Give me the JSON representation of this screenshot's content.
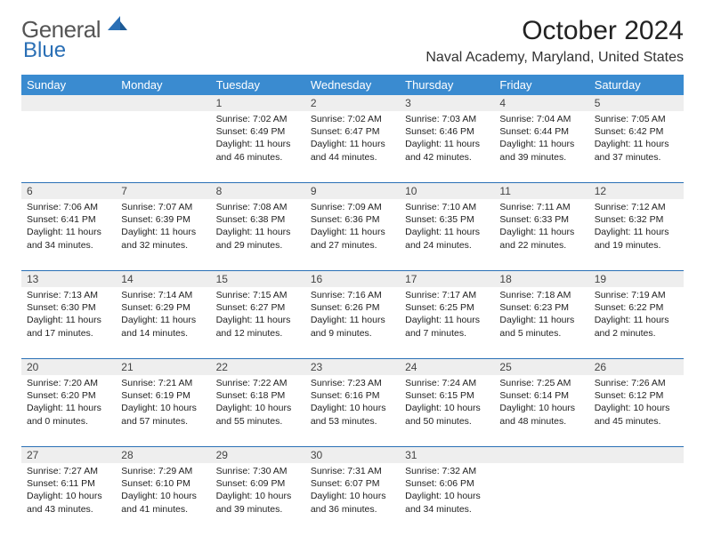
{
  "brand": {
    "name1": "General",
    "name2": "Blue"
  },
  "title": {
    "month": "October 2024",
    "location": "Naval Academy, Maryland, United States"
  },
  "dow": [
    "Sunday",
    "Monday",
    "Tuesday",
    "Wednesday",
    "Thursday",
    "Friday",
    "Saturday"
  ],
  "colors": {
    "accent": "#3a8bd0",
    "divider": "#2a6fb5",
    "headbg": "#eeeeee"
  },
  "weeks": [
    [
      null,
      null,
      {
        "n": "1",
        "sr": "7:02 AM",
        "ss": "6:49 PM",
        "dl": "11 hours and 46 minutes."
      },
      {
        "n": "2",
        "sr": "7:02 AM",
        "ss": "6:47 PM",
        "dl": "11 hours and 44 minutes."
      },
      {
        "n": "3",
        "sr": "7:03 AM",
        "ss": "6:46 PM",
        "dl": "11 hours and 42 minutes."
      },
      {
        "n": "4",
        "sr": "7:04 AM",
        "ss": "6:44 PM",
        "dl": "11 hours and 39 minutes."
      },
      {
        "n": "5",
        "sr": "7:05 AM",
        "ss": "6:42 PM",
        "dl": "11 hours and 37 minutes."
      }
    ],
    [
      {
        "n": "6",
        "sr": "7:06 AM",
        "ss": "6:41 PM",
        "dl": "11 hours and 34 minutes."
      },
      {
        "n": "7",
        "sr": "7:07 AM",
        "ss": "6:39 PM",
        "dl": "11 hours and 32 minutes."
      },
      {
        "n": "8",
        "sr": "7:08 AM",
        "ss": "6:38 PM",
        "dl": "11 hours and 29 minutes."
      },
      {
        "n": "9",
        "sr": "7:09 AM",
        "ss": "6:36 PM",
        "dl": "11 hours and 27 minutes."
      },
      {
        "n": "10",
        "sr": "7:10 AM",
        "ss": "6:35 PM",
        "dl": "11 hours and 24 minutes."
      },
      {
        "n": "11",
        "sr": "7:11 AM",
        "ss": "6:33 PM",
        "dl": "11 hours and 22 minutes."
      },
      {
        "n": "12",
        "sr": "7:12 AM",
        "ss": "6:32 PM",
        "dl": "11 hours and 19 minutes."
      }
    ],
    [
      {
        "n": "13",
        "sr": "7:13 AM",
        "ss": "6:30 PM",
        "dl": "11 hours and 17 minutes."
      },
      {
        "n": "14",
        "sr": "7:14 AM",
        "ss": "6:29 PM",
        "dl": "11 hours and 14 minutes."
      },
      {
        "n": "15",
        "sr": "7:15 AM",
        "ss": "6:27 PM",
        "dl": "11 hours and 12 minutes."
      },
      {
        "n": "16",
        "sr": "7:16 AM",
        "ss": "6:26 PM",
        "dl": "11 hours and 9 minutes."
      },
      {
        "n": "17",
        "sr": "7:17 AM",
        "ss": "6:25 PM",
        "dl": "11 hours and 7 minutes."
      },
      {
        "n": "18",
        "sr": "7:18 AM",
        "ss": "6:23 PM",
        "dl": "11 hours and 5 minutes."
      },
      {
        "n": "19",
        "sr": "7:19 AM",
        "ss": "6:22 PM",
        "dl": "11 hours and 2 minutes."
      }
    ],
    [
      {
        "n": "20",
        "sr": "7:20 AM",
        "ss": "6:20 PM",
        "dl": "11 hours and 0 minutes."
      },
      {
        "n": "21",
        "sr": "7:21 AM",
        "ss": "6:19 PM",
        "dl": "10 hours and 57 minutes."
      },
      {
        "n": "22",
        "sr": "7:22 AM",
        "ss": "6:18 PM",
        "dl": "10 hours and 55 minutes."
      },
      {
        "n": "23",
        "sr": "7:23 AM",
        "ss": "6:16 PM",
        "dl": "10 hours and 53 minutes."
      },
      {
        "n": "24",
        "sr": "7:24 AM",
        "ss": "6:15 PM",
        "dl": "10 hours and 50 minutes."
      },
      {
        "n": "25",
        "sr": "7:25 AM",
        "ss": "6:14 PM",
        "dl": "10 hours and 48 minutes."
      },
      {
        "n": "26",
        "sr": "7:26 AM",
        "ss": "6:12 PM",
        "dl": "10 hours and 45 minutes."
      }
    ],
    [
      {
        "n": "27",
        "sr": "7:27 AM",
        "ss": "6:11 PM",
        "dl": "10 hours and 43 minutes."
      },
      {
        "n": "28",
        "sr": "7:29 AM",
        "ss": "6:10 PM",
        "dl": "10 hours and 41 minutes."
      },
      {
        "n": "29",
        "sr": "7:30 AM",
        "ss": "6:09 PM",
        "dl": "10 hours and 39 minutes."
      },
      {
        "n": "30",
        "sr": "7:31 AM",
        "ss": "6:07 PM",
        "dl": "10 hours and 36 minutes."
      },
      {
        "n": "31",
        "sr": "7:32 AM",
        "ss": "6:06 PM",
        "dl": "10 hours and 34 minutes."
      },
      null,
      null
    ]
  ]
}
